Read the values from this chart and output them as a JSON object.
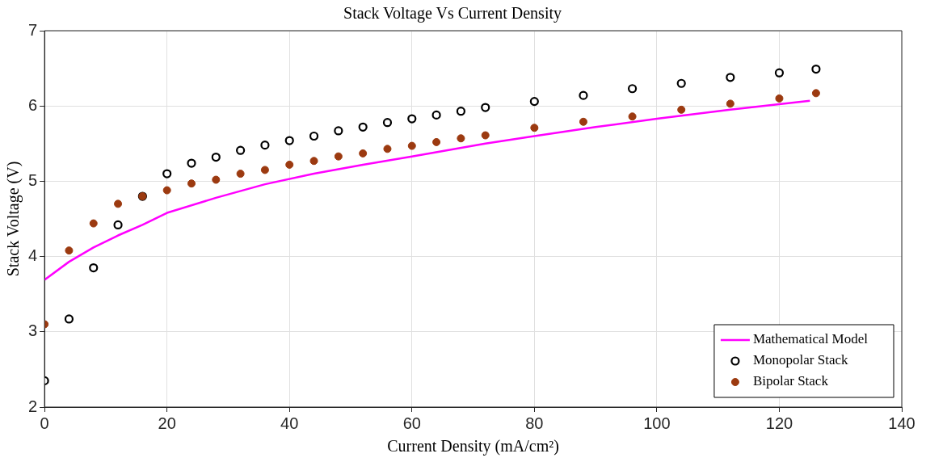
{
  "chart_data": {
    "type": "scatter",
    "title": "Stack Voltage Vs Current Density",
    "xlabel": "Current Density (mA/cm²)",
    "ylabel": "Stack Voltage (V)",
    "xlim": [
      0,
      140
    ],
    "xticks": [
      0,
      20,
      40,
      60,
      80,
      100,
      120,
      140
    ],
    "ylim": [
      2,
      7
    ],
    "yticks": [
      2,
      3,
      4,
      5,
      6,
      7
    ],
    "grid": true,
    "legend": "bottom right",
    "series": [
      {
        "name": "Mathematical Model",
        "type": "line",
        "color": "#ff00ff",
        "marker": "none",
        "line_style": "solid",
        "x": [
          0,
          4,
          8,
          12,
          16,
          20,
          28,
          36,
          44,
          52,
          60,
          72,
          80,
          90,
          100,
          112,
          125
        ],
        "values": [
          3.69,
          3.93,
          4.12,
          4.28,
          4.42,
          4.58,
          4.78,
          4.96,
          5.1,
          5.22,
          5.33,
          5.5,
          5.6,
          5.72,
          5.83,
          5.95,
          6.07
        ]
      },
      {
        "name": "Monopolar Stack",
        "color": "#000000",
        "marker": "circle",
        "x": [
          0,
          4,
          8,
          12,
          16,
          20,
          24,
          28,
          32,
          36,
          40,
          44,
          48,
          52,
          56,
          60,
          64,
          68,
          72,
          80,
          88,
          96,
          104,
          112,
          120,
          126
        ],
        "values": [
          2.35,
          3.17,
          3.85,
          4.42,
          4.8,
          5.1,
          5.24,
          5.32,
          5.41,
          5.48,
          5.54,
          5.6,
          5.67,
          5.72,
          5.78,
          5.83,
          5.88,
          5.93,
          5.98,
          6.06,
          6.14,
          6.23,
          6.3,
          6.38,
          6.44,
          6.49
        ]
      },
      {
        "name": "Bipolar Stack",
        "color": "#9c3a10",
        "marker": "circle",
        "x": [
          0,
          4,
          8,
          12,
          16,
          20,
          24,
          28,
          32,
          36,
          40,
          44,
          48,
          52,
          56,
          60,
          64,
          68,
          72,
          80,
          88,
          96,
          104,
          112,
          120,
          126
        ],
        "values": [
          3.1,
          4.08,
          4.44,
          4.7,
          4.8,
          4.88,
          4.97,
          5.02,
          5.1,
          5.15,
          5.22,
          5.27,
          5.33,
          5.37,
          5.43,
          5.47,
          5.52,
          5.57,
          5.61,
          5.71,
          5.79,
          5.86,
          5.95,
          6.03,
          6.1,
          6.17
        ]
      }
    ]
  }
}
